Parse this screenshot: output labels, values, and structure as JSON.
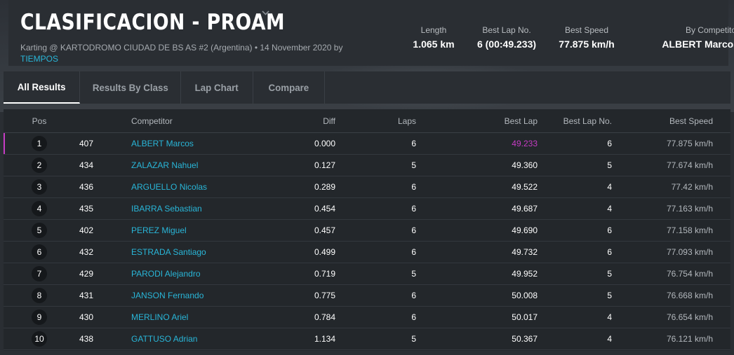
{
  "header": {
    "title": "CLASIFICACION - PROAM",
    "subtitle": "Karting @ KARTODROMO CIUDAD DE BS AS #2 (Argentina) • 14 November 2020 by",
    "by_link": "TIEMPOS",
    "stats": {
      "length_label": "Length",
      "length_value": "1.065 km",
      "best_lap_no_label": "Best Lap No.",
      "best_lap_no_value": "6 (00:49.233)",
      "best_speed_label": "Best Speed",
      "best_speed_value": "77.875 km/h",
      "by_competitor_label": "By Competitor",
      "by_competitor_value": "ALBERT Marcos"
    }
  },
  "tabs": {
    "all_results": "All Results",
    "results_by_class": "Results By Class",
    "lap_chart": "Lap Chart",
    "compare": "Compare"
  },
  "table": {
    "columns": {
      "pos": "Pos",
      "competitor": "Competitor",
      "diff": "Diff",
      "laps": "Laps",
      "best_lap": "Best Lap",
      "best_lap_no": "Best Lap No.",
      "best_speed": "Best Speed"
    },
    "rows": [
      {
        "pos": "1",
        "num": "407",
        "name": "ALBERT Marcos",
        "diff": "0.000",
        "laps": "6",
        "best_lap": "49.233",
        "best_lap_no": "6",
        "best_speed": "77.875 km/h"
      },
      {
        "pos": "2",
        "num": "434",
        "name": "ZALAZAR Nahuel",
        "diff": "0.127",
        "laps": "5",
        "best_lap": "49.360",
        "best_lap_no": "5",
        "best_speed": "77.674 km/h"
      },
      {
        "pos": "3",
        "num": "436",
        "name": "ARGUELLO Nicolas",
        "diff": "0.289",
        "laps": "6",
        "best_lap": "49.522",
        "best_lap_no": "4",
        "best_speed": "77.42 km/h"
      },
      {
        "pos": "4",
        "num": "435",
        "name": "IBARRA Sebastian",
        "diff": "0.454",
        "laps": "6",
        "best_lap": "49.687",
        "best_lap_no": "4",
        "best_speed": "77.163 km/h"
      },
      {
        "pos": "5",
        "num": "402",
        "name": "PEREZ Miguel",
        "diff": "0.457",
        "laps": "6",
        "best_lap": "49.690",
        "best_lap_no": "6",
        "best_speed": "77.158 km/h"
      },
      {
        "pos": "6",
        "num": "432",
        "name": "ESTRADA Santiago",
        "diff": "0.499",
        "laps": "6",
        "best_lap": "49.732",
        "best_lap_no": "6",
        "best_speed": "77.093 km/h"
      },
      {
        "pos": "7",
        "num": "429",
        "name": "PARODI Alejandro",
        "diff": "0.719",
        "laps": "5",
        "best_lap": "49.952",
        "best_lap_no": "5",
        "best_speed": "76.754 km/h"
      },
      {
        "pos": "8",
        "num": "431",
        "name": "JANSON Fernando",
        "diff": "0.775",
        "laps": "6",
        "best_lap": "50.008",
        "best_lap_no": "5",
        "best_speed": "76.668 km/h"
      },
      {
        "pos": "9",
        "num": "430",
        "name": "MERLINO Ariel",
        "diff": "0.784",
        "laps": "6",
        "best_lap": "50.017",
        "best_lap_no": "4",
        "best_speed": "76.654 km/h"
      },
      {
        "pos": "10",
        "num": "438",
        "name": "GATTUSO Adrian",
        "diff": "1.134",
        "laps": "5",
        "best_lap": "50.367",
        "best_lap_no": "4",
        "best_speed": "76.121 km/h"
      }
    ]
  },
  "colors": {
    "background": "#2a2e33",
    "link": "#29b6d8",
    "best": "#c63cc4"
  },
  "icons": {
    "title_dropdown": "chevron-down-icon"
  }
}
